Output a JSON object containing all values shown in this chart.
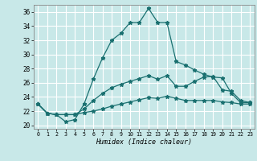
{
  "xlabel": "Humidex (Indice chaleur)",
  "bg_color": "#c8e8e8",
  "grid_color": "#ffffff",
  "line_color": "#1a7070",
  "xlim": [
    -0.5,
    23.5
  ],
  "ylim": [
    19.5,
    37.0
  ],
  "xticks": [
    0,
    1,
    2,
    3,
    4,
    5,
    6,
    7,
    8,
    9,
    10,
    11,
    12,
    13,
    14,
    15,
    16,
    17,
    18,
    19,
    20,
    21,
    22,
    23
  ],
  "yticks": [
    20,
    22,
    24,
    26,
    28,
    30,
    32,
    34,
    36
  ],
  "curve1_x": [
    0,
    1,
    2,
    3,
    4,
    5,
    6,
    7,
    8,
    9,
    10,
    11,
    12,
    13,
    14,
    15,
    16,
    17,
    18,
    19,
    20,
    21,
    22,
    23
  ],
  "curve1_y": [
    23.0,
    21.7,
    21.5,
    20.5,
    20.8,
    23.0,
    26.5,
    29.5,
    32.0,
    33.0,
    34.5,
    34.5,
    36.5,
    34.5,
    34.5,
    29.0,
    28.5,
    27.8,
    27.2,
    26.8,
    26.7,
    24.5,
    23.2,
    23.2
  ],
  "curve2_x": [
    0,
    1,
    2,
    3,
    4,
    5,
    6,
    7,
    8,
    9,
    10,
    11,
    12,
    13,
    14,
    15,
    16,
    17,
    18,
    19,
    20,
    21,
    22,
    23
  ],
  "curve2_y": [
    23.0,
    21.7,
    21.5,
    21.5,
    21.5,
    22.3,
    23.5,
    24.5,
    25.3,
    25.8,
    26.2,
    26.6,
    27.0,
    26.5,
    27.0,
    25.5,
    25.5,
    26.2,
    26.8,
    26.9,
    25.0,
    24.8,
    23.5,
    23.2
  ],
  "curve3_x": [
    0,
    1,
    2,
    3,
    4,
    5,
    6,
    7,
    8,
    9,
    10,
    11,
    12,
    13,
    14,
    15,
    16,
    17,
    18,
    19,
    20,
    21,
    22,
    23
  ],
  "curve3_y": [
    23.0,
    21.7,
    21.5,
    21.5,
    21.5,
    21.8,
    22.0,
    22.3,
    22.7,
    23.0,
    23.3,
    23.6,
    23.9,
    23.8,
    24.1,
    23.8,
    23.5,
    23.5,
    23.5,
    23.5,
    23.3,
    23.2,
    23.0,
    23.0
  ]
}
